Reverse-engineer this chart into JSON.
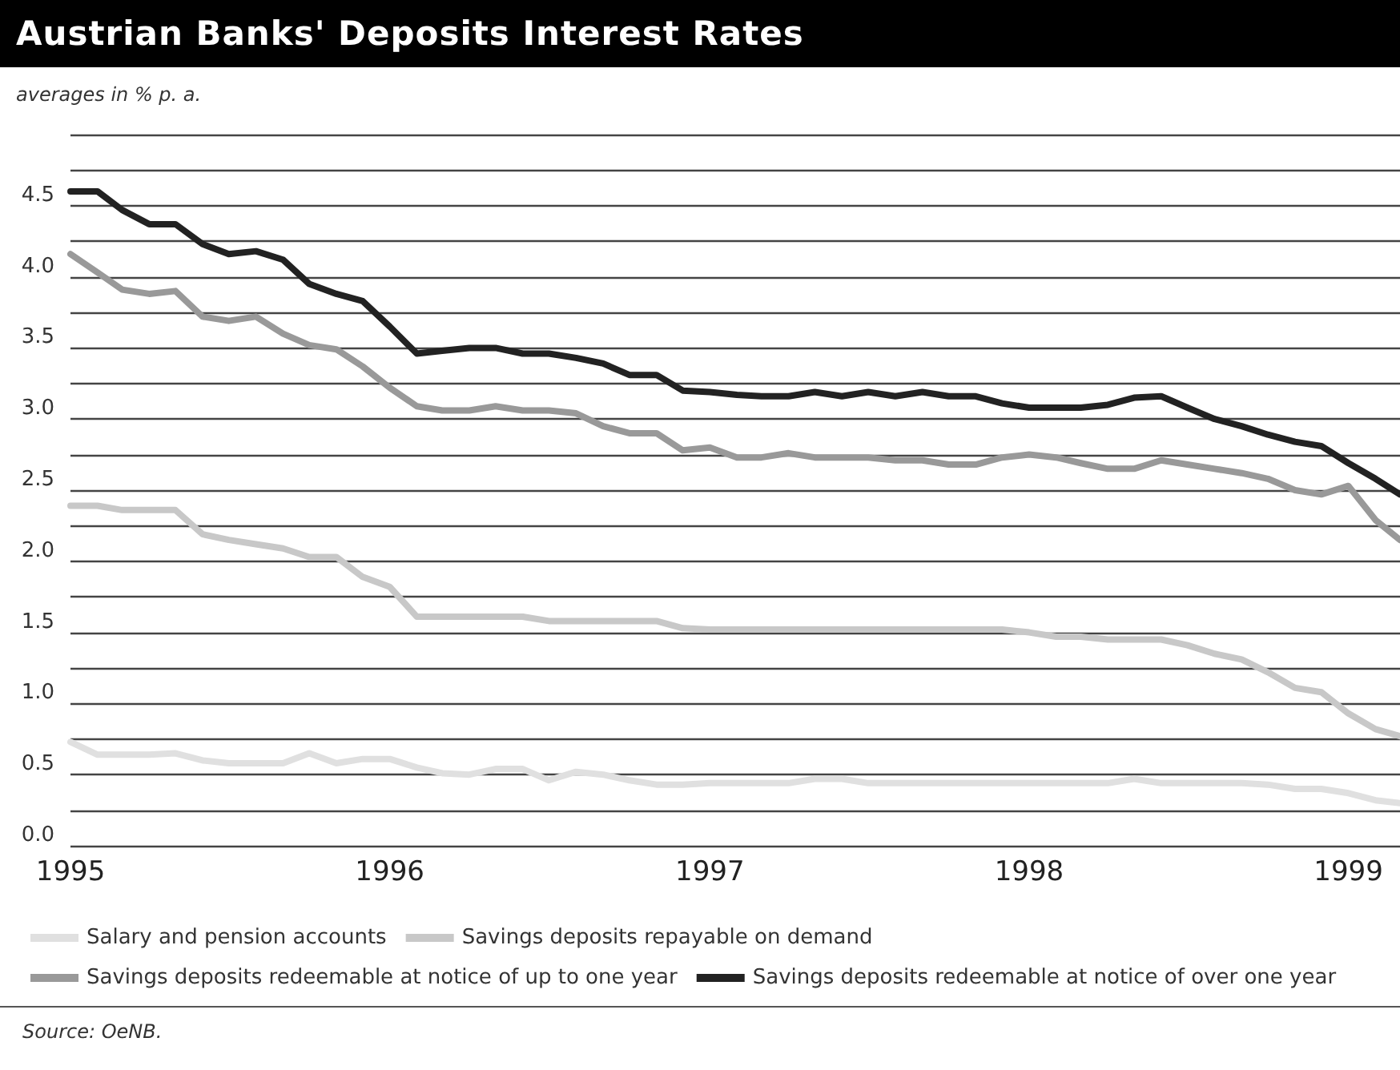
{
  "chart_data": {
    "type": "line",
    "title": "Austrian Banks' Deposits Interest Rates",
    "subtitle": "averages in % p. a.",
    "annotations": [
      "Source: OeNB."
    ],
    "x": [
      "1995-01",
      "1995-02",
      "1995-03",
      "1995-04",
      "1995-05",
      "1995-06",
      "1995-07",
      "1995-08",
      "1995-09",
      "1995-10",
      "1995-11",
      "1995-12",
      "1996-01",
      "1996-02",
      "1996-03",
      "1996-04",
      "1996-05",
      "1996-06",
      "1996-07",
      "1996-08",
      "1996-09",
      "1996-10",
      "1996-11",
      "1996-12",
      "1997-01",
      "1997-02",
      "1997-03",
      "1997-04",
      "1997-05",
      "1997-06",
      "1997-07",
      "1997-08",
      "1997-09",
      "1997-10",
      "1997-11",
      "1997-12",
      "1998-01",
      "1998-02",
      "1998-03",
      "1998-04",
      "1998-05",
      "1998-06",
      "1998-07",
      "1998-08",
      "1998-09",
      "1998-10",
      "1998-11",
      "1998-12",
      "1999-01",
      "1999-02",
      "1999-03"
    ],
    "series": [
      {
        "name": "Salary and pension accounts",
        "color": "#e0e0e0",
        "values": [
          0.73,
          0.64,
          0.64,
          0.64,
          0.65,
          0.6,
          0.58,
          0.58,
          0.58,
          0.65,
          0.58,
          0.61,
          0.61,
          0.55,
          0.51,
          0.5,
          0.54,
          0.54,
          0.46,
          0.52,
          0.5,
          0.46,
          0.43,
          0.43,
          0.44,
          0.44,
          0.44,
          0.44,
          0.47,
          0.47,
          0.44,
          0.44,
          0.44,
          0.44,
          0.44,
          0.44,
          0.44,
          0.44,
          0.44,
          0.44,
          0.47,
          0.44,
          0.44,
          0.44,
          0.44,
          0.43,
          0.4,
          0.4,
          0.37,
          0.32,
          0.3
        ]
      },
      {
        "name": "Savings deposits repayable on demand",
        "color": "#c8c8c8",
        "values": [
          2.39,
          2.39,
          2.36,
          2.36,
          2.36,
          2.19,
          2.15,
          2.12,
          2.09,
          2.03,
          2.03,
          1.89,
          1.82,
          1.61,
          1.61,
          1.61,
          1.61,
          1.61,
          1.58,
          1.58,
          1.58,
          1.58,
          1.58,
          1.53,
          1.52,
          1.52,
          1.52,
          1.52,
          1.52,
          1.52,
          1.52,
          1.52,
          1.52,
          1.52,
          1.52,
          1.52,
          1.5,
          1.47,
          1.47,
          1.45,
          1.45,
          1.45,
          1.41,
          1.35,
          1.31,
          1.22,
          1.11,
          1.08,
          0.93,
          0.82,
          0.77
        ]
      },
      {
        "name": "Savings deposits redeemable at notice of up to one year",
        "color": "#999999",
        "values": [
          4.16,
          4.03,
          3.91,
          3.88,
          3.9,
          3.72,
          3.69,
          3.72,
          3.6,
          3.52,
          3.49,
          3.37,
          3.22,
          3.09,
          3.06,
          3.06,
          3.09,
          3.06,
          3.06,
          3.04,
          2.95,
          2.9,
          2.9,
          2.78,
          2.8,
          2.73,
          2.73,
          2.76,
          2.73,
          2.73,
          2.73,
          2.71,
          2.71,
          2.68,
          2.68,
          2.73,
          2.75,
          2.73,
          2.69,
          2.65,
          2.65,
          2.71,
          2.68,
          2.65,
          2.62,
          2.58,
          2.5,
          2.47,
          2.53,
          2.29,
          2.15
        ]
      },
      {
        "name": "Savings deposits redeemable at notice of over one year",
        "color": "#222222",
        "values": [
          4.6,
          4.6,
          4.47,
          4.37,
          4.37,
          4.23,
          4.16,
          4.18,
          4.12,
          3.95,
          3.88,
          3.83,
          3.65,
          3.46,
          3.48,
          3.5,
          3.5,
          3.46,
          3.46,
          3.43,
          3.39,
          3.31,
          3.31,
          3.2,
          3.19,
          3.17,
          3.16,
          3.16,
          3.19,
          3.16,
          3.19,
          3.16,
          3.19,
          3.16,
          3.16,
          3.11,
          3.08,
          3.08,
          3.08,
          3.1,
          3.15,
          3.16,
          3.08,
          3.0,
          2.95,
          2.89,
          2.84,
          2.81,
          2.69,
          2.58,
          2.47
        ]
      }
    ],
    "xlim": [
      "1995-01",
      "1999-03"
    ],
    "xticks": [
      "1995",
      "1996",
      "1997",
      "1998",
      "1999"
    ],
    "ylim": [
      0,
      5
    ],
    "yticks": [
      {
        "value": 0,
        "label": "0.0"
      },
      {
        "value": 0.25,
        "label": null
      },
      {
        "value": 0.5,
        "label": "0.5"
      },
      {
        "value": 0.75,
        "label": null
      },
      {
        "value": 1,
        "label": "1.0"
      },
      {
        "value": 1.25,
        "label": null
      },
      {
        "value": 1.5,
        "label": "1.5"
      },
      {
        "value": 1.75,
        "label": null
      },
      {
        "value": 2,
        "label": "2.0"
      },
      {
        "value": 2.25,
        "label": null
      },
      {
        "value": 2.5,
        "label": "2.5"
      },
      {
        "value": 2.75,
        "label": null
      },
      {
        "value": 3,
        "label": "3.0"
      },
      {
        "value": 3.25,
        "label": null
      },
      {
        "value": 3.5,
        "label": "3.5"
      },
      {
        "value": 3.75,
        "label": null
      },
      {
        "value": 4,
        "label": "4.0"
      },
      {
        "value": 4.25,
        "label": null
      },
      {
        "value": 4.5,
        "label": "4.5"
      },
      {
        "value": 4.75,
        "label": null
      },
      {
        "value": 5,
        "label": null
      }
    ],
    "grid": "y",
    "legend": "bottom",
    "marker": "none",
    "line_style": "solid"
  }
}
